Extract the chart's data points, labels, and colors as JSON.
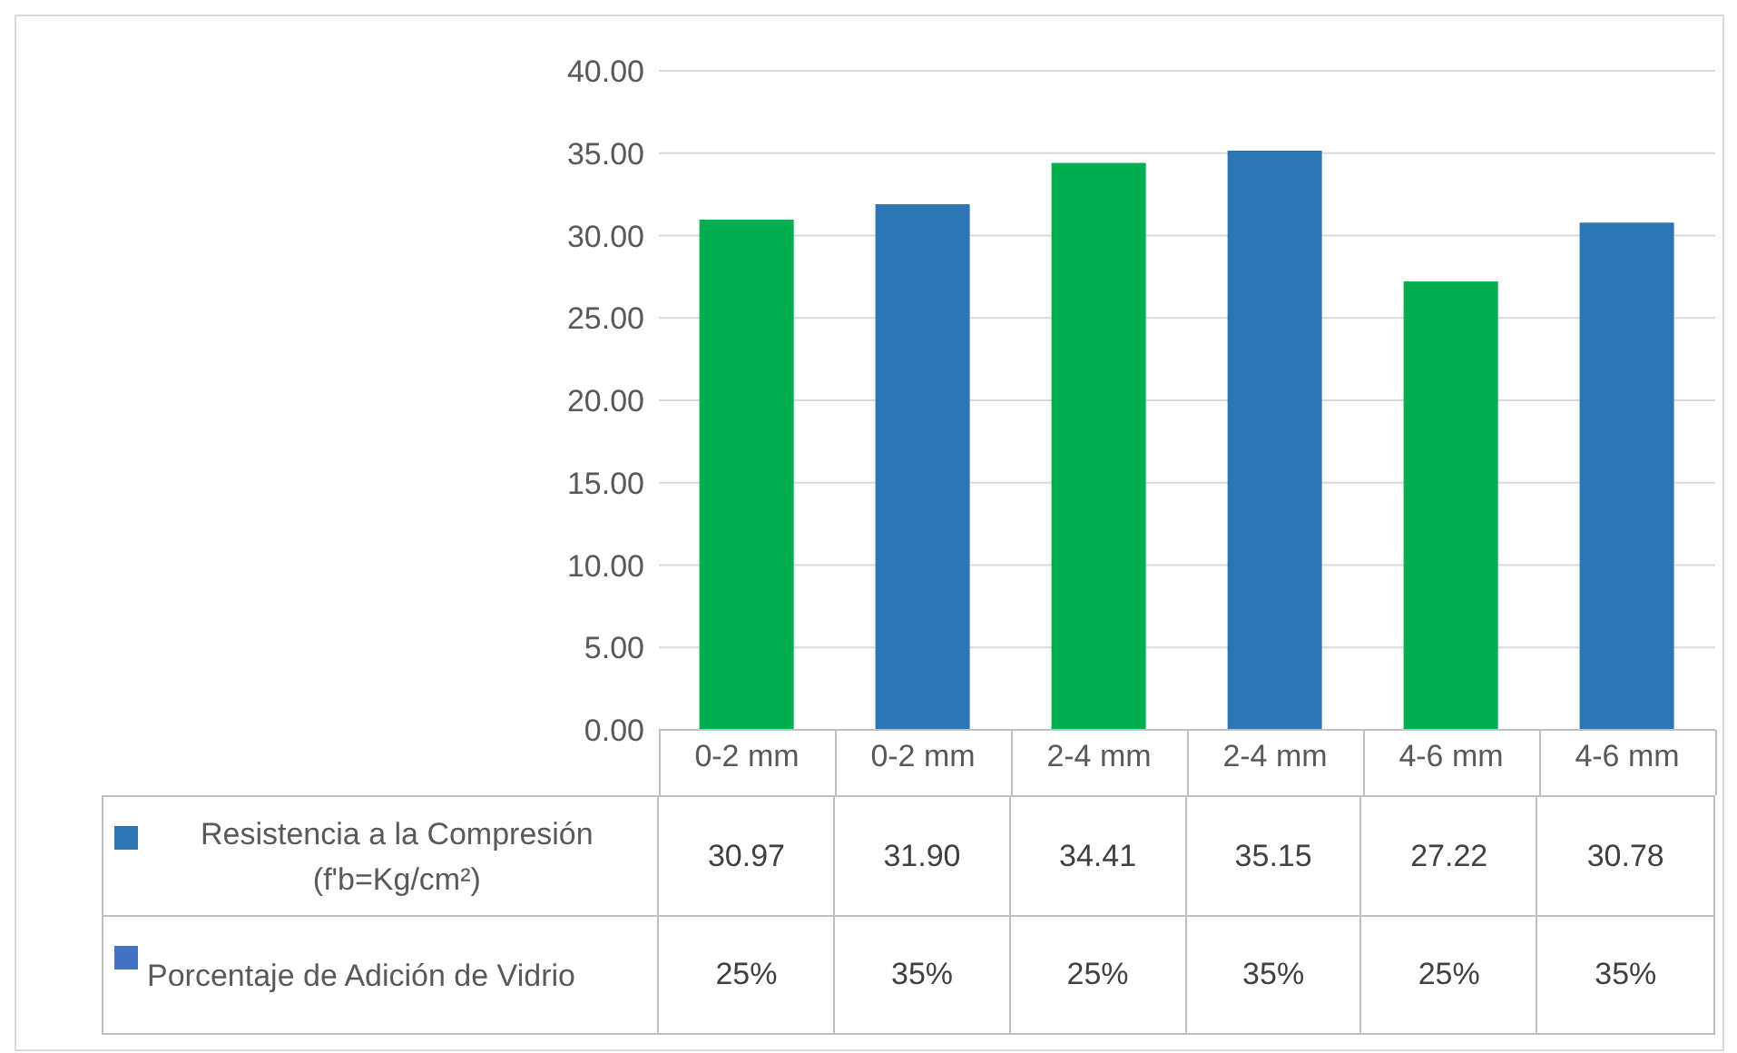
{
  "chart_data": {
    "type": "bar",
    "categories": [
      "0-2 mm",
      "0-2 mm",
      "2-4 mm",
      "2-4 mm",
      "4-6 mm",
      "4-6 mm"
    ],
    "series": [
      {
        "name": "Resistencia a la Compresión (f'b=Kg/cm²)",
        "color": "#2e75b6",
        "colors": [
          "#00b050",
          "#2e75b6",
          "#00b050",
          "#2e75b6",
          "#00b050",
          "#2e75b6"
        ],
        "values": [
          30.97,
          31.9,
          34.41,
          35.15,
          27.22,
          30.78
        ],
        "value_labels": [
          "30.97",
          "31.90",
          "34.41",
          "35.15",
          "27.22",
          "30.78"
        ]
      }
    ],
    "ylim": [
      0,
      40
    ],
    "yticks": [
      {
        "value": 0,
        "label": "0.00"
      },
      {
        "value": 5,
        "label": "5.00"
      },
      {
        "value": 10,
        "label": "10.00"
      },
      {
        "value": 15,
        "label": "15.00"
      },
      {
        "value": 20,
        "label": "20.00"
      },
      {
        "value": 25,
        "label": "25.00"
      },
      {
        "value": 30,
        "label": "30.00"
      },
      {
        "value": 35,
        "label": "35.00"
      },
      {
        "value": 40,
        "label": "40.00"
      }
    ],
    "grid": "y",
    "annotations": [
      "Porcentaje de Adición de Vidrio",
      "25%",
      "35%",
      "25%",
      "35%",
      "25%",
      "35%"
    ]
  }
}
